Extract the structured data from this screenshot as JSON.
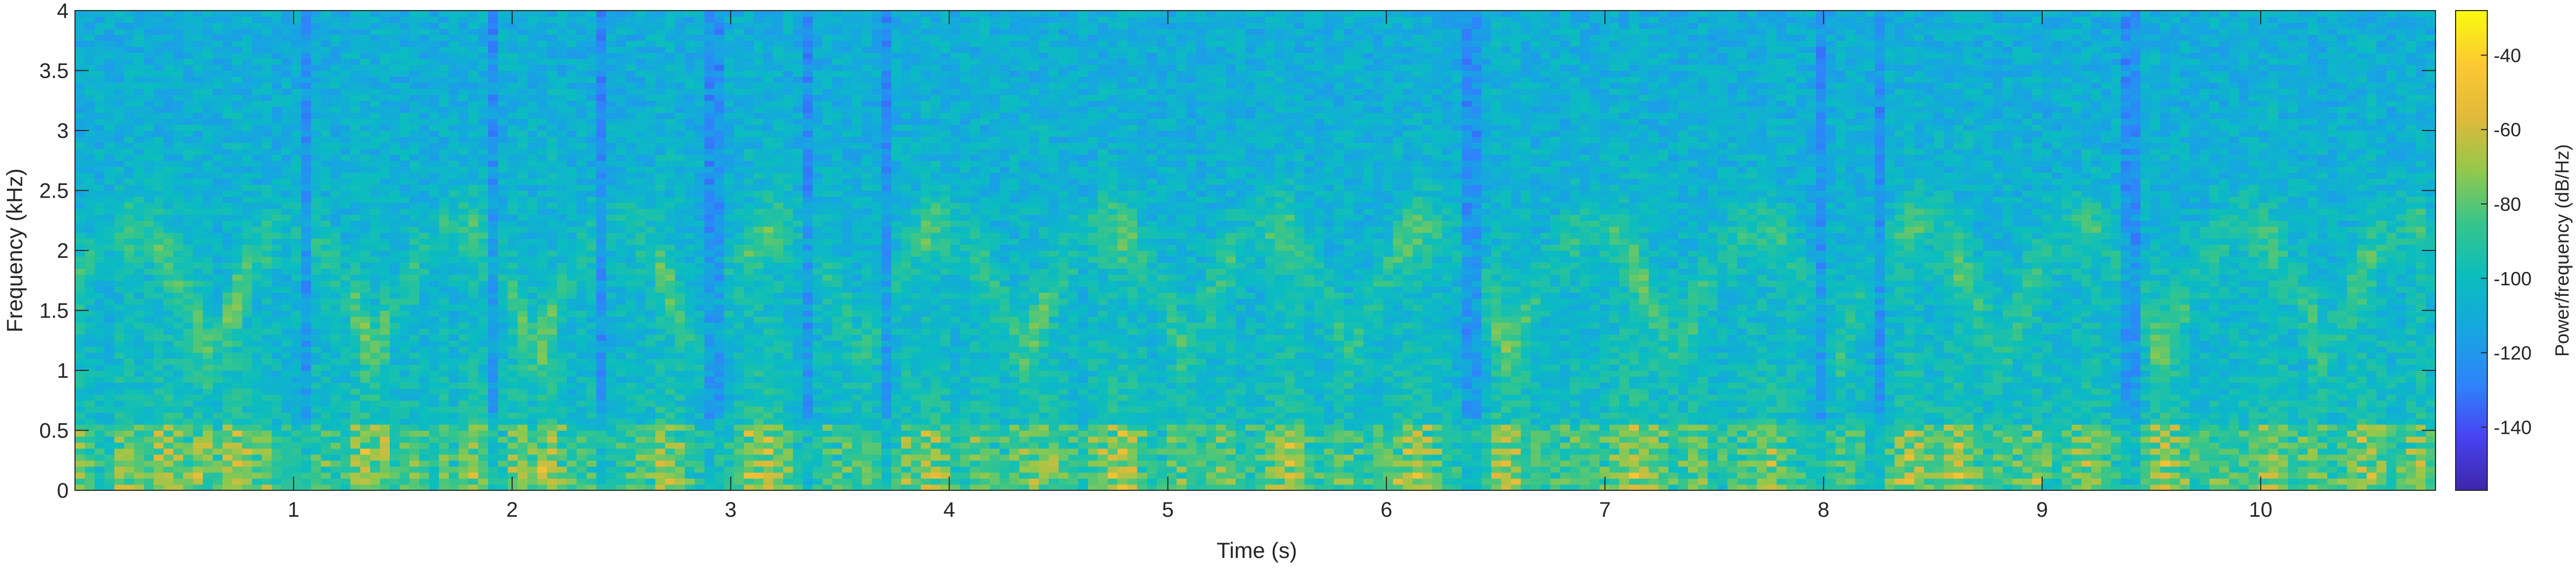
{
  "chart_data": {
    "type": "heatmap",
    "title": "",
    "xlabel": "Time (s)",
    "ylabel": "Frequency (kHz)",
    "xlim": [
      0.0,
      10.8
    ],
    "ylim": [
      0,
      4
    ],
    "x_ticks": [
      1,
      2,
      3,
      4,
      5,
      6,
      7,
      8,
      9,
      10
    ],
    "y_ticks": [
      0,
      0.5,
      1,
      1.5,
      2,
      2.5,
      3,
      3.5,
      4
    ],
    "colorbar": {
      "label": "Power/frequency (dB/Hz)",
      "clim": [
        -157,
        -28
      ],
      "ticks": [
        -140,
        -120,
        -100,
        -80,
        -60,
        -40
      ],
      "colormap": "parula",
      "colors": [
        "#3e26a8",
        "#4743f2",
        "#2f84fb",
        "#16a6e0",
        "#0bbdbf",
        "#36c58b",
        "#93c84b",
        "#e1b93a",
        "#fcc932",
        "#f9fb0e"
      ]
    },
    "grid": false,
    "energy_profile": [
      0.7,
      0.55,
      0.4,
      0.35,
      0.75,
      0.8,
      0.7,
      0.6,
      0.85,
      0.9,
      0.8,
      0.7,
      0.85,
      0.75,
      0.55,
      0.85,
      0.9,
      0.8,
      0.6,
      0.75,
      0.45,
      0.35,
      0.4,
      0.3,
      0.55,
      0.6,
      0.5,
      0.45,
      0.85,
      0.9,
      0.7,
      0.8,
      0.4,
      0.55,
      0.6,
      0.5,
      0.35,
      0.65,
      0.5,
      0.7,
      0.85,
      0.7,
      0.3,
      0.4,
      0.75,
      0.8,
      0.65,
      0.9,
      0.95,
      0.6,
      0.45,
      0.55,
      0.5,
      0.25,
      0.35,
      0.45,
      0.5,
      0.55,
      0.6,
      0.9,
      0.85,
      0.7,
      0.45,
      0.35,
      0.25,
      0.3,
      0.4,
      0.55,
      0.85,
      0.95,
      0.9,
      0.8,
      0.6,
      0.35,
      0.25,
      0.4,
      0.55,
      0.5,
      0.55,
      0.45,
      0.6,
      0.5,
      0.3,
      0.45,
      0.75,
      0.65,
      0.9,
      0.85,
      0.7,
      0.45,
      0.5,
      0.65,
      0.7,
      0.55,
      0.5,
      0.6,
      0.65,
      0.8,
      0.85,
      0.7,
      0.55,
      0.5,
      0.35,
      0.65,
      0.8,
      0.9,
      0.95,
      0.85,
      0.6,
      0.4,
      0.45,
      0.6,
      0.65,
      0.55,
      0.5,
      0.6,
      0.65,
      0.7,
      0.5,
      0.45,
      0.55,
      0.75,
      0.9,
      0.95,
      0.85,
      0.55,
      0.45,
      0.5,
      0.6,
      0.55,
      0.5,
      0.45,
      0.55,
      0.6,
      0.75,
      0.85,
      0.9,
      0.8,
      0.65,
      0.5,
      0.35,
      0.25,
      0.3,
      0.45,
      0.9,
      0.95,
      0.85,
      0.7,
      0.55,
      0.5,
      0.45,
      0.55,
      0.65,
      0.55,
      0.5,
      0.55,
      0.75,
      0.85,
      0.95,
      0.85,
      0.75,
      0.6,
      0.5,
      0.55,
      0.7,
      0.65,
      0.5,
      0.45,
      0.55,
      0.6,
      0.65,
      0.75,
      0.8,
      0.7,
      0.55,
      0.45,
      0.35,
      0.3,
      0.4,
      0.6,
      0.55,
      0.45,
      0.35,
      0.25,
      0.5,
      0.75,
      0.9,
      0.8,
      0.6,
      0.65,
      0.75,
      0.9,
      0.85,
      0.6,
      0.55,
      0.5,
      0.55,
      0.6,
      0.65,
      0.75,
      0.55,
      0.5,
      0.55,
      0.65,
      0.8,
      0.75,
      0.55,
      0.45,
      0.3,
      0.25,
      0.55,
      0.85,
      0.95,
      0.8,
      0.65,
      0.45,
      0.5,
      0.6,
      0.55,
      0.5,
      0.6,
      0.65,
      0.75,
      0.85,
      0.65,
      0.5,
      0.55,
      0.7,
      0.6,
      0.45,
      0.55,
      0.7,
      0.85,
      0.8,
      0.65,
      0.5,
      0.55,
      0.75,
      0.85,
      0.55
    ]
  }
}
